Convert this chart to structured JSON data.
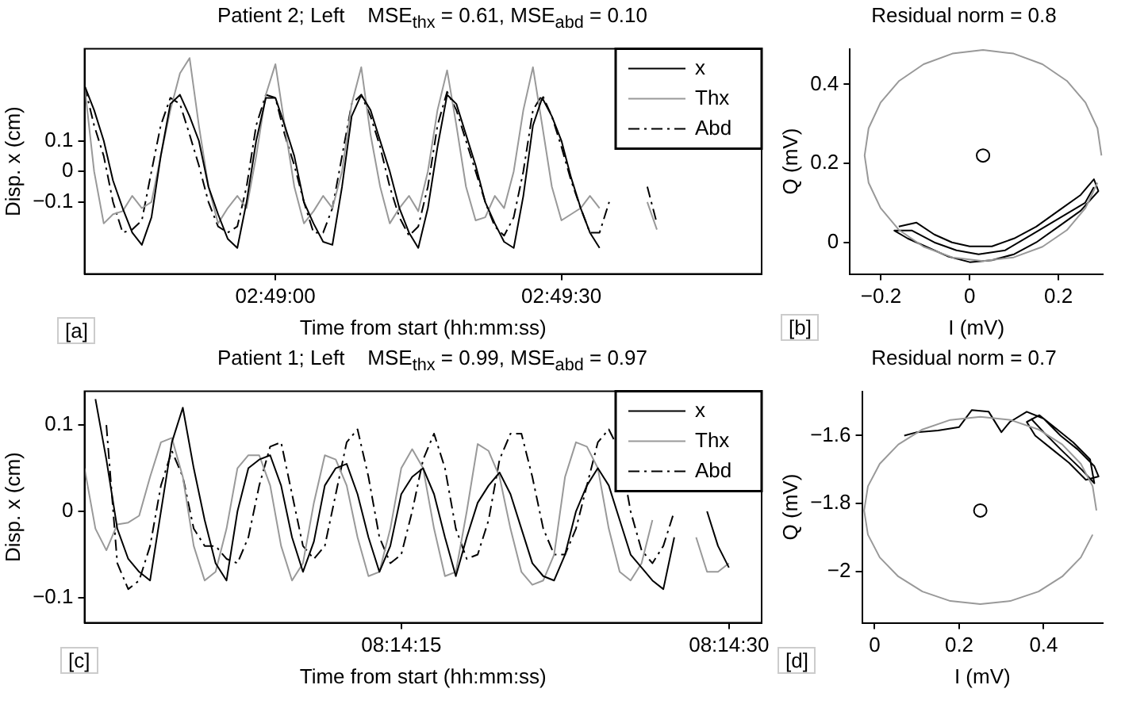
{
  "chart_data": [
    {
      "type": "line",
      "title": "Patient 2; Left    MSE$_{thx}$ = 0.61, MSE$_{abd}$ = 0.10",
      "xlabel": "Time from start (hh:mm:ss)",
      "ylabel": "Disp. x (cm)",
      "annotations": [
        "[a]"
      ],
      "x": [
        2.81111,
        2.81139,
        2.81167,
        2.81194,
        2.81222,
        2.8125,
        2.81278,
        2.81306,
        2.81333,
        2.81361,
        2.81389,
        2.81417,
        2.81444,
        2.81472,
        2.815,
        2.81528,
        2.81556,
        2.81583,
        2.81611,
        2.81639,
        2.81667,
        2.81694,
        2.81722,
        2.8175,
        2.81778,
        2.81806,
        2.81833,
        2.81861,
        2.81889,
        2.81917,
        2.81944,
        2.81972,
        2.82,
        2.82028,
        2.82056,
        2.82083,
        2.82111,
        2.82139,
        2.82167,
        2.82194,
        2.82222,
        2.8225,
        2.82278,
        2.82306,
        2.82333,
        2.82361,
        2.82389,
        2.82417,
        2.82444,
        2.82472,
        2.825,
        2.82528,
        2.82556,
        2.82583,
        2.82611,
        2.82639,
        2.82667,
        2.82694,
        2.82722,
        2.8275,
        2.82778
      ],
      "series": [
        {
          "name": "x",
          "color": "#000000",
          "line_style": "solid",
          "values": [
            0.28,
            0.2,
            0.1,
            -0.03,
            -0.12,
            -0.2,
            -0.24,
            -0.15,
            0.05,
            0.22,
            0.25,
            0.18,
            0.1,
            -0.05,
            -0.14,
            -0.22,
            -0.25,
            -0.1,
            0.1,
            0.24,
            0.24,
            0.15,
            0.05,
            -0.1,
            -0.17,
            -0.23,
            -0.24,
            -0.05,
            0.18,
            0.25,
            0.2,
            0.1,
            0,
            -0.12,
            -0.2,
            -0.25,
            -0.12,
            0.08,
            0.25,
            0.22,
            0.12,
            0.02,
            -0.1,
            -0.17,
            -0.23,
            -0.25,
            -0.08,
            0.15,
            0.24,
            0.18,
            0.1,
            -0.02,
            -0.12,
            -0.2,
            -0.25,
            null,
            null,
            null,
            null,
            null,
            null
          ]
        },
        {
          "name": "Thx",
          "color": "#999999",
          "line_style": "solid",
          "values": [
            0.28,
            0,
            -0.17,
            -0.14,
            -0.13,
            -0.08,
            -0.12,
            -0.1,
            0.05,
            0.2,
            0.32,
            0.37,
            0.15,
            -0.05,
            -0.17,
            -0.12,
            -0.08,
            -0.12,
            0.05,
            0.25,
            0.35,
            0.15,
            -0.05,
            -0.17,
            -0.13,
            -0.08,
            -0.12,
            0,
            0.22,
            0.34,
            0.12,
            -0.05,
            -0.17,
            -0.12,
            -0.08,
            -0.13,
            0,
            0.2,
            0.33,
            0.15,
            -0.05,
            -0.16,
            -0.15,
            -0.08,
            -0.12,
            0,
            0.2,
            0.34,
            0.15,
            -0.05,
            -0.16,
            -0.14,
            -0.12,
            -0.08,
            -0.12,
            null,
            null,
            null,
            null,
            -0.1,
            -0.19
          ]
        },
        {
          "name": "Abd",
          "color": "#000000",
          "line_style": "dashed",
          "values": [
            0.28,
            0.15,
            0.05,
            -0.1,
            -0.2,
            -0.19,
            -0.16,
            0,
            0.15,
            0.24,
            0.22,
            0.12,
            0.02,
            -0.1,
            -0.18,
            -0.2,
            -0.18,
            -0.05,
            0.15,
            0.25,
            0.24,
            0.12,
            0.02,
            -0.1,
            -0.2,
            -0.2,
            -0.12,
            0.05,
            0.22,
            0.25,
            0.18,
            0.08,
            -0.05,
            -0.15,
            -0.21,
            -0.18,
            -0.05,
            0.15,
            0.26,
            0.2,
            0.1,
            0,
            -0.1,
            -0.18,
            -0.21,
            -0.15,
            0,
            0.2,
            0.25,
            0.18,
            0.08,
            -0.03,
            -0.12,
            -0.2,
            -0.2,
            -0.1,
            null,
            null,
            null,
            -0.05,
            -0.17
          ]
        }
      ],
      "xlim": [
        2.81111,
        2.83083
      ],
      "xticks": [
        {
          "value": 2.81667,
          "label": "02:49:00"
        },
        {
          "value": 2.825,
          "label": "02:49:30"
        }
      ],
      "ylim": [
        -0.335,
        0.4
      ],
      "yticks": [
        -0.1,
        0,
        0.1
      ],
      "grid": false,
      "legend": "top right",
      "marker": "none"
    },
    {
      "type": "line",
      "title": "Residual norm = 0.8",
      "xlabel": "I (mV)",
      "ylabel": "Q (mV)",
      "annotations": [
        "[b]"
      ],
      "series": [
        {
          "type": "line",
          "color": "#999999",
          "x": [
            0.297,
            0.288,
            0.261,
            0.219,
            0.164,
            0.099,
            0.03,
            -0.039,
            -0.104,
            -0.159,
            -0.201,
            -0.228,
            -0.237,
            -0.228,
            -0.201,
            -0.159,
            -0.104,
            -0.039,
            0.03,
            0.099,
            0.164,
            0.219,
            0.261,
            0.288
          ],
          "values": [
            0.22,
            0.289,
            0.354,
            0.409,
            0.451,
            0.478,
            0.487,
            0.478,
            0.451,
            0.409,
            0.354,
            0.289,
            0.22,
            0.151,
            0.087,
            0.031,
            -0.011,
            -0.038,
            -0.047,
            -0.038,
            -0.011,
            0.031,
            0.087,
            0.151
          ]
        },
        {
          "type": "line",
          "color": "#000000",
          "x": [
            -0.16,
            -0.12,
            -0.08,
            -0.04,
            0,
            0.05,
            0.1,
            0.15,
            0.2,
            0.25,
            0.28,
            0.29,
            0.25,
            0.2,
            0.15,
            0.1,
            0.05,
            0,
            -0.05,
            -0.1,
            -0.14,
            -0.17,
            -0.13,
            -0.08,
            -0.03,
            0.02,
            0.08,
            0.14,
            0.2,
            0.26,
            0.28
          ],
          "values": [
            0.04,
            0.05,
            0.02,
            0,
            -0.01,
            -0.01,
            0.01,
            0.04,
            0.08,
            0.12,
            0.16,
            0.13,
            0.08,
            0.04,
            0,
            -0.03,
            -0.045,
            -0.05,
            -0.035,
            -0.01,
            0.01,
            0.03,
            0.03,
            0,
            -0.02,
            -0.03,
            -0.02,
            0.02,
            0.06,
            0.1,
            0.14
          ]
        },
        {
          "type": "scatter",
          "color": "#000000",
          "marker": "circle",
          "x": [
            0.03
          ],
          "values": [
            0.22
          ]
        }
      ],
      "xlim": [
        -0.27,
        0.3
      ],
      "xticks": [
        -0.2,
        0,
        0.2
      ],
      "ylim": [
        -0.08,
        0.49
      ],
      "yticks": [
        0,
        0.2,
        0.4
      ],
      "grid": false,
      "marker": "none"
    },
    {
      "type": "line",
      "title": "Patient 1; Left    MSE$_{thx}$ = 0.99, MSE$_{abd}$ = 0.97",
      "xlabel": "Time from start (hh:mm:ss)",
      "ylabel": "Disp. x (cm)",
      "annotations": [
        "[c]"
      ],
      "x": [
        8.233472,
        8.233611,
        8.23375,
        8.233889,
        8.234028,
        8.234167,
        8.234306,
        8.234444,
        8.234583,
        8.234722,
        8.234861,
        8.235,
        8.235139,
        8.235278,
        8.235417,
        8.235556,
        8.235694,
        8.235833,
        8.235972,
        8.236111,
        8.23625,
        8.236389,
        8.236528,
        8.236667,
        8.236806,
        8.236944,
        8.237083,
        8.237222,
        8.237361,
        8.2375,
        8.237639,
        8.237778,
        8.237917,
        8.238056,
        8.238194,
        8.238333,
        8.238472,
        8.238611,
        8.23875,
        8.238889,
        8.239028,
        8.239167,
        8.239306,
        8.239444,
        8.239583,
        8.239722,
        8.239861,
        8.24,
        8.240139,
        8.240278,
        8.240417,
        8.240556,
        8.240694,
        8.240833,
        8.240972,
        8.241111,
        8.24125,
        8.241389,
        8.241528,
        8.241667
      ],
      "series": [
        {
          "name": "x",
          "color": "#000000",
          "line_style": "solid",
          "values": [
            null,
            0.13,
            0.06,
            -0.02,
            -0.055,
            -0.07,
            -0.08,
            0,
            0.08,
            0.12,
            0.05,
            -0.01,
            -0.06,
            -0.08,
            0,
            0.05,
            0.06,
            0.065,
            0.03,
            -0.03,
            -0.07,
            -0.035,
            0.03,
            0.05,
            0.055,
            0.02,
            -0.03,
            -0.07,
            -0.04,
            0.02,
            0.04,
            0.05,
            0.02,
            -0.03,
            -0.075,
            -0.03,
            0.01,
            0.03,
            0.045,
            0.02,
            -0.02,
            -0.06,
            -0.075,
            -0.08,
            -0.05,
            0,
            0.03,
            0.05,
            0.03,
            -0.01,
            -0.05,
            -0.065,
            -0.08,
            -0.09,
            -0.03,
            null,
            null,
            0,
            -0.04,
            -0.065
          ]
        },
        {
          "name": "Thx",
          "color": "#999999",
          "line_style": "solid",
          "values": [
            0.05,
            -0.02,
            -0.045,
            -0.015,
            -0.013,
            -0.005,
            0.04,
            0.08,
            0.085,
            0.04,
            -0.04,
            -0.08,
            -0.07,
            -0.02,
            0.05,
            0.065,
            0.065,
            0.03,
            -0.04,
            -0.08,
            -0.06,
            0.01,
            0.065,
            0.06,
            0.03,
            -0.03,
            -0.075,
            -0.07,
            -0.02,
            0.05,
            0.072,
            0.05,
            -0.02,
            -0.075,
            -0.07,
            0,
            0.078,
            0.07,
            0.04,
            -0.02,
            -0.07,
            -0.085,
            -0.08,
            -0.05,
            0.04,
            0.08,
            0.075,
            0.05,
            -0.02,
            -0.07,
            -0.08,
            -0.06,
            -0.01,
            null,
            null,
            null,
            -0.03,
            -0.07,
            -0.07,
            -0.06
          ]
        },
        {
          "name": "Abd",
          "color": "#000000",
          "line_style": "dashed",
          "values": [
            null,
            null,
            0.1,
            -0.06,
            -0.09,
            -0.08,
            -0.04,
            0.03,
            0.07,
            0.04,
            -0.02,
            -0.04,
            -0.04,
            -0.055,
            -0.06,
            -0.03,
            0.03,
            0.075,
            0.08,
            0.02,
            -0.04,
            -0.055,
            -0.04,
            0.02,
            0.08,
            0.095,
            0.04,
            -0.03,
            -0.06,
            -0.05,
            0,
            0.06,
            0.09,
            0.05,
            -0.02,
            -0.055,
            -0.05,
            -0.01,
            0.06,
            0.09,
            0.09,
            0.04,
            -0.02,
            -0.05,
            -0.05,
            -0.02,
            0.03,
            0.08,
            0.095,
            0.07,
            0,
            -0.045,
            -0.06,
            -0.04,
            0,
            null,
            null,
            null,
            null,
            null
          ]
        }
      ],
      "xlim": [
        8.233472,
        8.242083
      ],
      "xticks": [
        {
          "value": 8.2375,
          "label": "08:14:15"
        },
        {
          "value": 8.241667,
          "label": "08:14:30"
        }
      ],
      "ylim": [
        -0.129,
        0.139
      ],
      "yticks": [
        -0.1,
        0,
        0.1
      ],
      "grid": false,
      "legend": "top right",
      "marker": "none"
    },
    {
      "type": "line",
      "title": "Residual norm = 0.7",
      "xlabel": "I (mV)",
      "ylabel": "Q (mV)",
      "annotations": [
        "[d]"
      ],
      "series": [
        {
          "type": "line",
          "color": "#999999",
          "x": [
            0.525,
            0.516,
            0.488,
            0.444,
            0.388,
            0.321,
            0.25,
            0.179,
            0.113,
            0.056,
            0.012,
            -0.016,
            -0.025,
            -0.016,
            0.012,
            0.056,
            0.113,
            0.179,
            0.25,
            0.321,
            0.388,
            0.444,
            0.488,
            0.516
          ],
          "values": [
            -1.82,
            -1.749,
            -1.683,
            -1.626,
            -1.582,
            -1.554,
            -1.545,
            -1.554,
            -1.582,
            -1.626,
            -1.683,
            -1.749,
            -1.82,
            -1.891,
            -1.958,
            -2.014,
            -2.058,
            -2.086,
            -2.095,
            -2.086,
            -2.058,
            -2.014,
            -1.958,
            -1.891
          ]
        },
        {
          "type": "line",
          "color": "#000000",
          "x": [
            0.07,
            0.1,
            0.15,
            0.2,
            0.23,
            0.27,
            0.3,
            0.32,
            0.36,
            0.4,
            0.44,
            0.48,
            0.52,
            0.53,
            0.5,
            0.46,
            0.42,
            0.38,
            0.36,
            0.39,
            0.43,
            0.47,
            0.51,
            0.52,
            0.49,
            0.44,
            0.4,
            0.37
          ],
          "values": [
            -1.6,
            -1.59,
            -1.585,
            -1.575,
            -1.525,
            -1.53,
            -1.59,
            -1.56,
            -1.53,
            -1.55,
            -1.6,
            -1.64,
            -1.69,
            -1.72,
            -1.73,
            -1.68,
            -1.64,
            -1.6,
            -1.56,
            -1.54,
            -1.58,
            -1.62,
            -1.67,
            -1.74,
            -1.7,
            -1.64,
            -1.59,
            -1.55
          ]
        },
        {
          "type": "scatter",
          "color": "#000000",
          "marker": "circle",
          "x": [
            0.25
          ],
          "values": [
            -1.82
          ]
        }
      ],
      "xlim": [
        -0.03,
        0.54
      ],
      "xticks": [
        0,
        0.2,
        0.4
      ],
      "ylim": [
        -2.15,
        -1.47
      ],
      "yticks": [
        -2,
        -1.8,
        -1.6
      ],
      "grid": false,
      "marker": "none"
    }
  ]
}
